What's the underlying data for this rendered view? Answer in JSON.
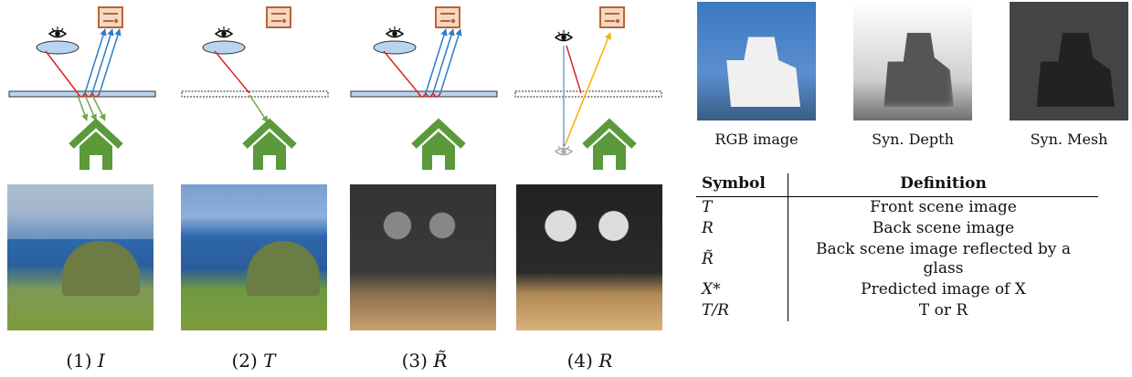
{
  "captions": [
    {
      "num": "(1)",
      "sym": "I"
    },
    {
      "num": "(2)",
      "sym": "T"
    },
    {
      "num": "(3)",
      "sym": "R̃"
    },
    {
      "num": "(4)",
      "sym": "R"
    }
  ],
  "thumbnails": [
    "RGB image",
    "Syn. Depth",
    "Syn. Mesh"
  ],
  "table": {
    "headers": [
      "Symbol",
      "Definition"
    ],
    "rows": [
      {
        "symbol": "T",
        "definition": "Front scene image"
      },
      {
        "symbol": "R",
        "definition": "Back scene image"
      },
      {
        "symbol": "R̃",
        "definition": "Back scene image reflected by a glass"
      },
      {
        "symbol": "X*",
        "definition": "Predicted image of X"
      },
      {
        "symbol": "T/R",
        "definition": "T or R"
      }
    ]
  },
  "colors": {
    "house": "#5a9a3a",
    "camera": "#b5653a",
    "glass": "#9fc3e6",
    "ray_red": "#e02020",
    "ray_blue": "#2f7dc8",
    "ray_green": "#6aa84f",
    "ray_yellow": "#f0b400"
  }
}
